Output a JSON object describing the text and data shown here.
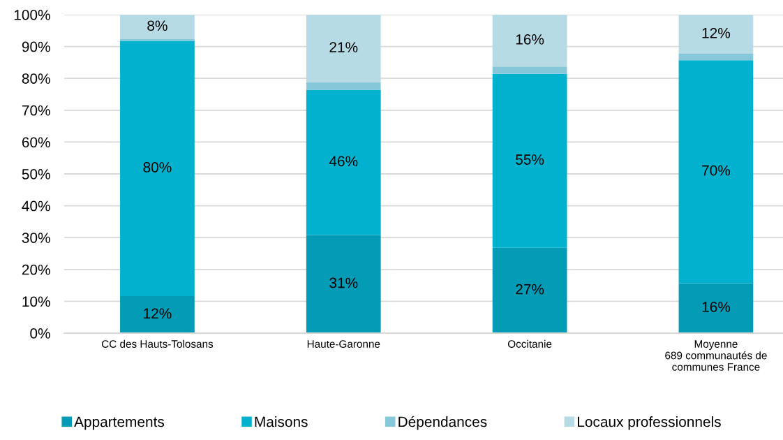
{
  "chart_data": {
    "type": "bar",
    "stacked": true,
    "categories": [
      "CC des Hauts-Tolosans",
      "Haute-Garonne",
      "Occitanie",
      "Moyenne\n689 communautés de\ncommunes France"
    ],
    "series": [
      {
        "name": "Appartements",
        "color": "#039bb5",
        "values": [
          11.6,
          30.8,
          26.8,
          15.7
        ],
        "value_labels": [
          "12%",
          "31%",
          "27%",
          "16%"
        ]
      },
      {
        "name": "Maisons",
        "color": "#02b1cd",
        "values": [
          80.2,
          45.6,
          54.6,
          70.0
        ],
        "value_labels": [
          "80%",
          "46%",
          "55%",
          "70%"
        ]
      },
      {
        "name": "Dépendances",
        "color": "#86c7d9",
        "values": [
          0.5,
          2.4,
          2.3,
          2.0
        ],
        "value_labels": [
          null,
          null,
          null,
          null
        ]
      },
      {
        "name": "Locaux professionnels",
        "color": "#b7dbe5",
        "values": [
          7.7,
          21.2,
          16.3,
          12.3
        ],
        "value_labels": [
          "8%",
          "21%",
          "16%",
          "12%"
        ]
      }
    ],
    "ylim": [
      0,
      100
    ],
    "yticks": [
      {
        "value": 0,
        "label": "0%"
      },
      {
        "value": 10,
        "label": "10%"
      },
      {
        "value": 20,
        "label": "20%"
      },
      {
        "value": 30,
        "label": "30%"
      },
      {
        "value": 40,
        "label": "40%"
      },
      {
        "value": 50,
        "label": "50%"
      },
      {
        "value": 60,
        "label": "60%"
      },
      {
        "value": 70,
        "label": "70%"
      },
      {
        "value": 80,
        "label": "80%"
      },
      {
        "value": 90,
        "label": "90%"
      },
      {
        "value": 100,
        "label": "100%"
      }
    ],
    "grid": "y",
    "legend": "bottom"
  }
}
